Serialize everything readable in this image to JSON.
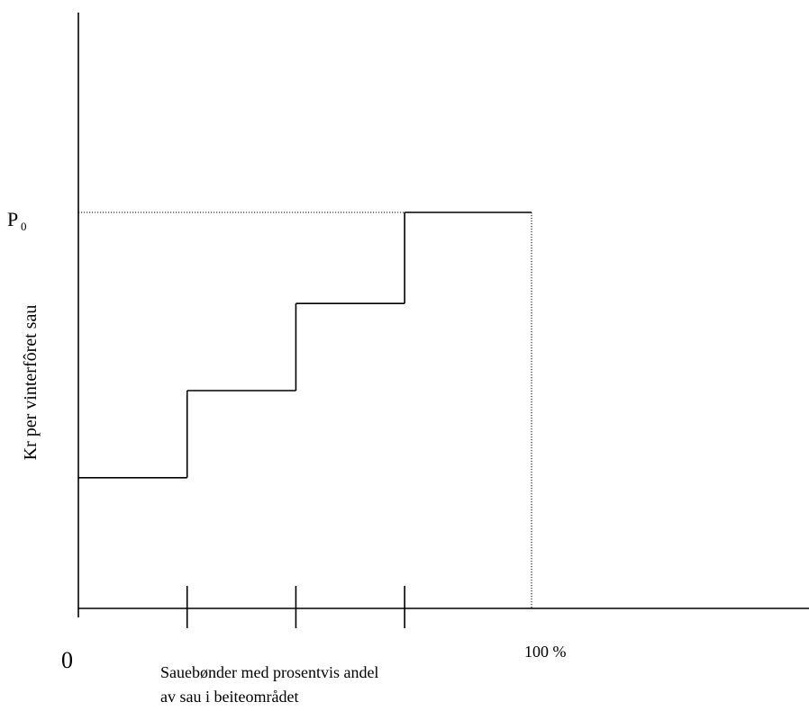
{
  "chart_data": {
    "type": "step",
    "title": "",
    "xlabel_lines": [
      "Sauebønder med prosentvis andel",
      "av sau i beiteområdet"
    ],
    "ylabel": "Kr per vinterfôret sau",
    "x_origin_label": "0",
    "x_end_label": "100 %",
    "p0_label": {
      "base": "P",
      "subscript": "0"
    },
    "x_range": [
      0,
      100
    ],
    "x_axis_extends_to": 162,
    "y_range": [
      0,
      10
    ],
    "x_tick_values": [
      0,
      24,
      48,
      72
    ],
    "steps": [
      {
        "x_start": 0,
        "x_end": 24,
        "y": 3.3
      },
      {
        "x_start": 24,
        "x_end": 48,
        "y": 5.5
      },
      {
        "x_start": 48,
        "x_end": 72,
        "y": 7.7
      },
      {
        "x_start": 72,
        "x_end": 100,
        "y": 10
      }
    ],
    "p0_value": 10,
    "grid": false,
    "legend": "none",
    "colors": {
      "line": "#000000",
      "guide": "#000000",
      "background": "#ffffff"
    }
  }
}
